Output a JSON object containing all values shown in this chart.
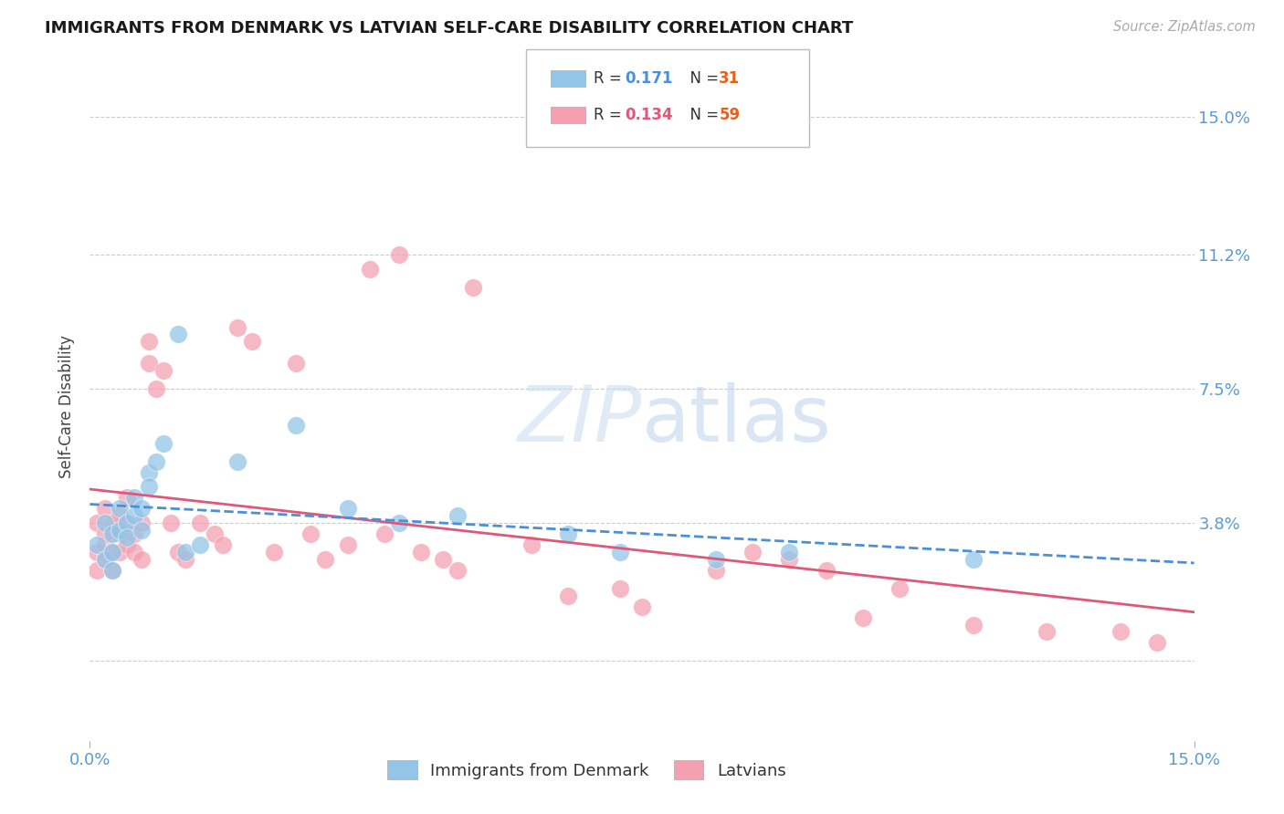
{
  "title": "IMMIGRANTS FROM DENMARK VS LATVIAN SELF-CARE DISABILITY CORRELATION CHART",
  "source": "Source: ZipAtlas.com",
  "ylabel": "Self-Care Disability",
  "xlim": [
    0.0,
    0.15
  ],
  "ylim": [
    -0.022,
    0.162
  ],
  "ytick_vals": [
    0.0,
    0.038,
    0.075,
    0.112,
    0.15
  ],
  "ytick_labels": [
    "",
    "3.8%",
    "7.5%",
    "11.2%",
    "15.0%"
  ],
  "xtick_vals": [
    0.0,
    0.15
  ],
  "xtick_labels": [
    "0.0%",
    "15.0%"
  ],
  "color_blue": "#92C5E8",
  "color_pink": "#F4A0B0",
  "color_blue_line": "#4A90D9",
  "color_pink_line": "#E05878",
  "color_axis_labels": "#5B9BD5",
  "color_N": "#E8601C",
  "color_R": "#4A90D9",
  "background_color": "#FFFFFF",
  "grid_color": "#CCCCCC",
  "legend_r1": "0.171",
  "legend_n1": "31",
  "legend_r2": "0.134",
  "legend_n2": "59",
  "watermark": "ZIPatlas",
  "denmark_x": [
    0.001,
    0.002,
    0.002,
    0.003,
    0.003,
    0.003,
    0.004,
    0.004,
    0.005,
    0.005,
    0.006,
    0.006,
    0.007,
    0.007,
    0.008,
    0.008,
    0.009,
    0.01,
    0.012,
    0.013,
    0.015,
    0.02,
    0.028,
    0.035,
    0.042,
    0.05,
    0.065,
    0.072,
    0.085,
    0.095,
    0.12
  ],
  "denmark_y": [
    0.032,
    0.028,
    0.038,
    0.035,
    0.03,
    0.025,
    0.042,
    0.036,
    0.038,
    0.034,
    0.04,
    0.045,
    0.036,
    0.042,
    0.052,
    0.048,
    0.055,
    0.06,
    0.09,
    0.03,
    0.032,
    0.055,
    0.065,
    0.042,
    0.038,
    0.04,
    0.035,
    0.03,
    0.028,
    0.03,
    0.028
  ],
  "latvian_x": [
    0.001,
    0.001,
    0.001,
    0.002,
    0.002,
    0.002,
    0.002,
    0.003,
    0.003,
    0.003,
    0.003,
    0.004,
    0.004,
    0.004,
    0.005,
    0.005,
    0.005,
    0.006,
    0.006,
    0.007,
    0.007,
    0.008,
    0.008,
    0.009,
    0.01,
    0.011,
    0.012,
    0.013,
    0.015,
    0.017,
    0.018,
    0.02,
    0.022,
    0.025,
    0.028,
    0.03,
    0.032,
    0.035,
    0.038,
    0.04,
    0.042,
    0.045,
    0.048,
    0.05,
    0.052,
    0.06,
    0.065,
    0.072,
    0.075,
    0.085,
    0.09,
    0.095,
    0.1,
    0.105,
    0.11,
    0.12,
    0.13,
    0.14,
    0.145
  ],
  "latvian_y": [
    0.03,
    0.038,
    0.025,
    0.032,
    0.028,
    0.035,
    0.042,
    0.03,
    0.036,
    0.025,
    0.038,
    0.035,
    0.03,
    0.04,
    0.032,
    0.038,
    0.045,
    0.035,
    0.03,
    0.038,
    0.028,
    0.082,
    0.088,
    0.075,
    0.08,
    0.038,
    0.03,
    0.028,
    0.038,
    0.035,
    0.032,
    0.092,
    0.088,
    0.03,
    0.082,
    0.035,
    0.028,
    0.032,
    0.108,
    0.035,
    0.112,
    0.03,
    0.028,
    0.025,
    0.103,
    0.032,
    0.018,
    0.02,
    0.015,
    0.025,
    0.03,
    0.028,
    0.025,
    0.012,
    0.02,
    0.01,
    0.008,
    0.008,
    0.005
  ]
}
